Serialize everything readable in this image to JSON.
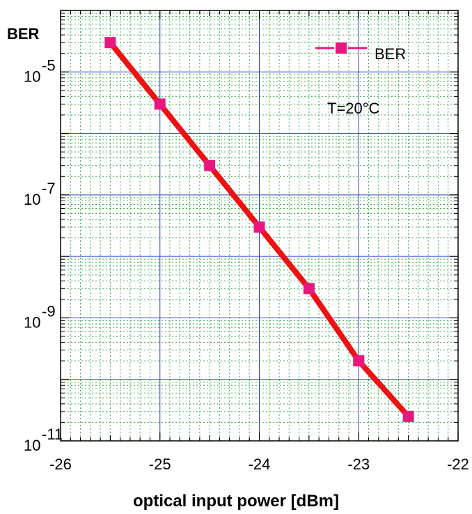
{
  "chart_data": {
    "type": "line",
    "title": "",
    "xlabel": "optical input power [dBm]",
    "ylabel": "BER",
    "xlim": [
      -26,
      -22
    ],
    "ylim_exponent": [
      -11,
      -4
    ],
    "yscale": "log",
    "grid": true,
    "legend_position": "top-right",
    "x_ticks": [
      "-26",
      "-25",
      "-24",
      "-23",
      "-22"
    ],
    "y_tick_base": "10",
    "y_tick_exponents": [
      "-5",
      "-7",
      "-9",
      "-11"
    ],
    "annotation": "T=20°C",
    "series": [
      {
        "name": "BER",
        "x": [
          -25.5,
          -25.0,
          -24.5,
          -24.0,
          -23.5,
          -23.0,
          -22.5
        ],
        "y": [
          3e-05,
          3e-06,
          3e-07,
          3e-08,
          3e-09,
          2e-10,
          2.5e-11
        ]
      }
    ],
    "colors": {
      "line": "#ee1111",
      "marker": "#e8177e",
      "grid_major": "#2b3fd0",
      "grid_minor": "#3aa84a"
    }
  }
}
